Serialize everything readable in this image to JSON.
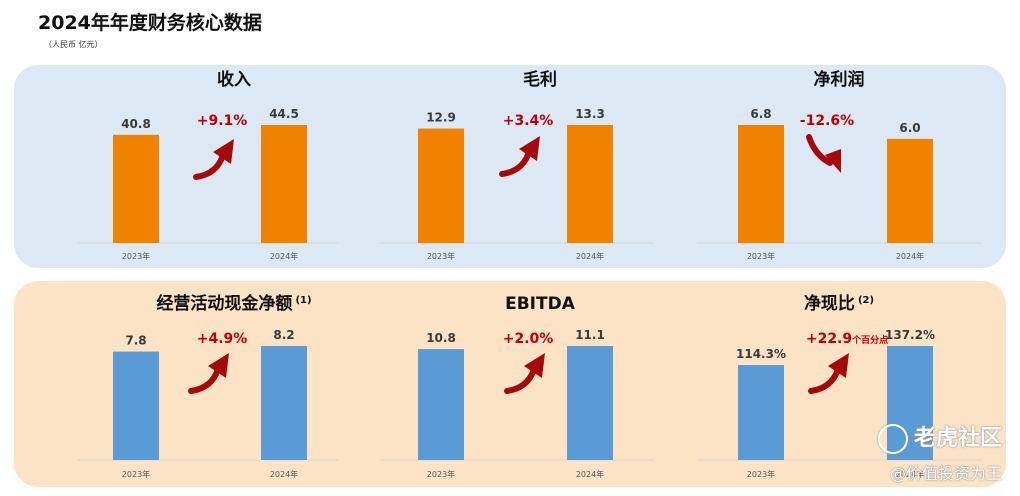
{
  "header": {
    "title": "2024年年度财务核心数据",
    "unit": "（人民币 亿元）"
  },
  "colors": {
    "orange": "#f08200",
    "blue": "#5b9bd5",
    "red": "#c00000",
    "arrow": "#a50a0a",
    "panel_top": "#dce8f4",
    "panel_bottom": "#fce3c6"
  },
  "chart_data": [
    {
      "type": "bar",
      "title": "收入",
      "categories": [
        "2023年",
        "2024年"
      ],
      "values": [
        40.8,
        44.5
      ],
      "labels": [
        "40.8",
        "44.5"
      ],
      "change": "+9.1%",
      "change_suffix": "",
      "direction": "up",
      "color": "orange",
      "row": 0,
      "col": 0
    },
    {
      "type": "bar",
      "title": "毛利",
      "categories": [
        "2023年",
        "2024年"
      ],
      "values": [
        12.9,
        13.3
      ],
      "labels": [
        "12.9",
        "13.3"
      ],
      "change": "+3.4%",
      "change_suffix": "",
      "direction": "up",
      "color": "orange",
      "row": 0,
      "col": 1
    },
    {
      "type": "bar",
      "title": "净利润",
      "categories": [
        "2023年",
        "2024年"
      ],
      "values": [
        6.8,
        6.0
      ],
      "labels": [
        "6.8",
        "6.0"
      ],
      "change": "-12.6%",
      "change_suffix": "",
      "direction": "down",
      "color": "orange",
      "row": 0,
      "col": 2
    },
    {
      "type": "bar",
      "title": "经营活动现金净额",
      "title_note": "(1)",
      "categories": [
        "2023年",
        "2024年"
      ],
      "values": [
        7.8,
        8.2
      ],
      "labels": [
        "7.8",
        "8.2"
      ],
      "change": "+4.9%",
      "change_suffix": "",
      "direction": "up",
      "color": "blue",
      "row": 1,
      "col": 0
    },
    {
      "type": "bar",
      "title": "EBITDA",
      "categories": [
        "2023年",
        "2024年"
      ],
      "values": [
        10.8,
        11.1
      ],
      "labels": [
        "10.8",
        "11.1"
      ],
      "change": "+2.0%",
      "change_suffix": "",
      "direction": "up",
      "color": "blue",
      "row": 1,
      "col": 1
    },
    {
      "type": "bar",
      "title": "净现比",
      "title_note": "(2)",
      "categories": [
        "2023年",
        "2024年"
      ],
      "values": [
        114.3,
        137.2
      ],
      "labels": [
        "114.3%",
        "137.2%"
      ],
      "change": "+22.9",
      "change_suffix": "个百分点",
      "direction": "up",
      "color": "blue",
      "row": 1,
      "col": 2
    }
  ],
  "watermark": {
    "logo": "老虎社区",
    "user": "@价值投资为王"
  }
}
